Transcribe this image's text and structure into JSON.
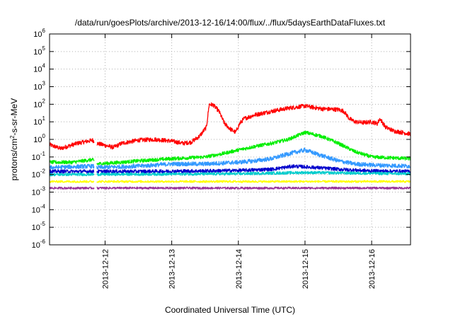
{
  "chart_data": {
    "type": "line",
    "title": "/data/run/goesPlots/archive/2013-12-16/14:00/flux/../flux/5daysEarthDataFluxes.txt",
    "xlabel": "Coordinated Universal Time (UTC)",
    "ylabel": {
      "prefix": "protons/cm",
      "sup": "2",
      "suffix": "-s-sr-MeV"
    },
    "yscale": "log",
    "ylim": [
      1e-06,
      1000000.0
    ],
    "xlim": [
      "2013-12-11 04:00",
      "2013-12-16 14:00"
    ],
    "grid": true,
    "legend": "none",
    "x_ticks": [
      {
        "label": "2013-12-12",
        "at": "2013-12-12 00:00"
      },
      {
        "label": "2013-12-13",
        "at": "2013-12-13 00:00"
      },
      {
        "label": "2013-12-14",
        "at": "2013-12-14 00:00"
      },
      {
        "label": "2013-12-15",
        "at": "2013-12-15 00:00"
      },
      {
        "label": "2013-12-16",
        "at": "2013-12-16 00:00"
      }
    ],
    "y_ticks": [
      {
        "base": "10",
        "exp": "-6",
        "value": 1e-06
      },
      {
        "base": "10",
        "exp": "-5",
        "value": 1e-05
      },
      {
        "base": "10",
        "exp": "-4",
        "value": 0.0001
      },
      {
        "base": "10",
        "exp": "-3",
        "value": 0.001
      },
      {
        "base": "10",
        "exp": "-2",
        "value": 0.01
      },
      {
        "base": "10",
        "exp": "-1",
        "value": 0.1
      },
      {
        "base": "10",
        "exp": "0",
        "value": 1
      },
      {
        "base": "10",
        "exp": "1",
        "value": 10
      },
      {
        "base": "10",
        "exp": "2",
        "value": 100
      },
      {
        "base": "10",
        "exp": "3",
        "value": 1000
      },
      {
        "base": "10",
        "exp": "4",
        "value": 10000
      },
      {
        "base": "10",
        "exp": "5",
        "value": 100000
      },
      {
        "base": "10",
        "exp": "6",
        "value": 1000000
      }
    ],
    "gap": [
      "2013-12-11 20:00",
      "2013-12-11 21:00"
    ],
    "series": [
      {
        "color": "#ff0000",
        "noise": 0.12,
        "x": [
          "2013-12-11 04:00",
          "2013-12-11 08:00",
          "2013-12-11 14:00",
          "2013-12-11 19:30",
          "2013-12-11 21:00",
          "2013-12-12 03:00",
          "2013-12-12 06:00",
          "2013-12-12 12:00",
          "2013-12-12 18:00",
          "2013-12-13 00:00",
          "2013-12-13 04:00",
          "2013-12-13 07:00",
          "2013-12-13 10:00",
          "2013-12-13 12:30",
          "2013-12-13 13:30",
          "2013-12-13 15:00",
          "2013-12-13 17:00",
          "2013-12-13 19:00",
          "2013-12-13 21:00",
          "2013-12-13 23:00",
          "2013-12-14 00:30",
          "2013-12-14 02:00",
          "2013-12-14 06:00",
          "2013-12-14 12:00",
          "2013-12-14 18:00",
          "2013-12-15 00:00",
          "2013-12-15 06:00",
          "2013-12-15 12:00",
          "2013-12-15 14:00",
          "2013-12-15 16:00",
          "2013-12-15 18:00",
          "2013-12-15 21:00",
          "2013-12-16 00:00",
          "2013-12-16 02:00",
          "2013-12-16 03:00",
          "2013-12-16 05:00",
          "2013-12-16 08:00",
          "2013-12-16 11:00",
          "2013-12-16 14:00"
        ],
        "y": [
          0.5,
          0.3,
          0.6,
          0.9,
          0.6,
          0.35,
          0.6,
          0.9,
          1.0,
          0.8,
          0.6,
          0.7,
          1.5,
          5,
          100,
          90,
          40,
          8,
          4,
          2.5,
          8,
          15,
          25,
          40,
          60,
          80,
          55,
          50,
          40,
          15,
          10,
          9,
          10,
          8,
          15,
          5,
          3,
          2.5,
          2
        ]
      },
      {
        "color": "#00ee00",
        "noise": 0.1,
        "x": [
          "2013-12-11 04:00",
          "2013-12-11 12:00",
          "2013-12-11 19:30",
          "2013-12-11 21:00",
          "2013-12-12 06:00",
          "2013-12-12 12:00",
          "2013-12-13 00:00",
          "2013-12-13 12:00",
          "2013-12-13 18:00",
          "2013-12-14 00:00",
          "2013-12-14 06:00",
          "2013-12-14 12:00",
          "2013-12-14 18:00",
          "2013-12-15 00:00",
          "2013-12-15 06:00",
          "2013-12-15 12:00",
          "2013-12-15 18:00",
          "2013-12-16 00:00",
          "2013-12-16 14:00"
        ],
        "y": [
          0.05,
          0.05,
          0.07,
          0.04,
          0.05,
          0.06,
          0.08,
          0.1,
          0.15,
          0.25,
          0.4,
          0.6,
          1.0,
          2.5,
          1.5,
          0.6,
          0.2,
          0.1,
          0.08
        ]
      },
      {
        "color": "#3399ff",
        "noise": 0.12,
        "x": [
          "2013-12-11 04:00",
          "2013-12-11 19:30",
          "2013-12-11 21:00",
          "2013-12-12 12:00",
          "2013-12-13 00:00",
          "2013-12-13 12:00",
          "2013-12-14 00:00",
          "2013-12-14 06:00",
          "2013-12-14 12:00",
          "2013-12-14 18:00",
          "2013-12-15 00:00",
          "2013-12-15 06:00",
          "2013-12-15 12:00",
          "2013-12-15 18:00",
          "2013-12-16 00:00",
          "2013-12-16 14:00"
        ],
        "y": [
          0.025,
          0.03,
          0.025,
          0.03,
          0.04,
          0.04,
          0.05,
          0.06,
          0.08,
          0.15,
          0.25,
          0.12,
          0.06,
          0.04,
          0.035,
          0.03
        ]
      },
      {
        "color": "#0000cc",
        "noise": 0.1,
        "x": [
          "2013-12-11 04:00",
          "2013-12-12 12:00",
          "2013-12-13 12:00",
          "2013-12-14 00:00",
          "2013-12-14 12:00",
          "2013-12-14 20:00",
          "2013-12-15 04:00",
          "2013-12-15 12:00",
          "2013-12-16 00:00",
          "2013-12-16 14:00"
        ],
        "y": [
          0.015,
          0.015,
          0.016,
          0.017,
          0.02,
          0.03,
          0.025,
          0.02,
          0.016,
          0.015
        ]
      },
      {
        "color": "#00cccc",
        "noise": 0.08,
        "x": [
          "2013-12-11 04:00",
          "2013-12-14 00:00",
          "2013-12-15 00:00",
          "2013-12-16 14:00"
        ],
        "y": [
          0.01,
          0.011,
          0.013,
          0.011
        ]
      },
      {
        "color": "#ffff00",
        "noise": 0.06,
        "x": [
          "2013-12-11 04:00",
          "2013-12-16 14:00"
        ],
        "y": [
          0.004,
          0.004
        ]
      },
      {
        "color": "#993399",
        "noise": 0.06,
        "x": [
          "2013-12-11 04:00",
          "2013-12-16 14:00"
        ],
        "y": [
          0.0017,
          0.0017
        ]
      }
    ]
  }
}
